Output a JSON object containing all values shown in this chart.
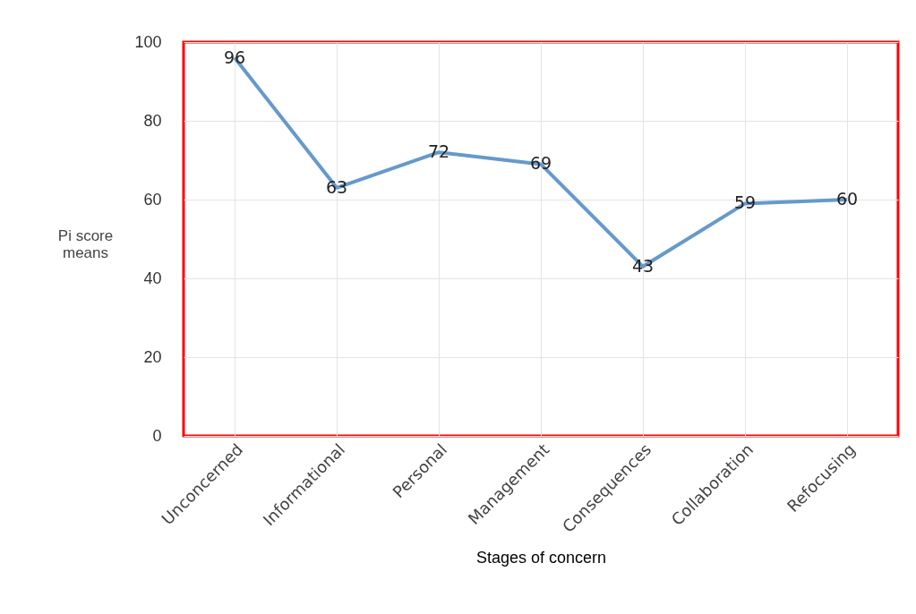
{
  "chart_data": {
    "type": "line",
    "xlabel": "Stages of concern",
    "ylabel": "Pi score means",
    "categories": [
      "Unconcerned",
      "Informational",
      "Personal",
      "Management",
      "Consequences",
      "Collaboration",
      "Refocusing"
    ],
    "series": [
      {
        "color": "#6699cc",
        "values": [
          96,
          63,
          72,
          69,
          43,
          59,
          60
        ]
      }
    ],
    "ylim": [
      0,
      100
    ],
    "yticks": [
      0,
      20,
      40,
      60,
      80,
      100
    ],
    "grid": true,
    "data_labels": true,
    "marker": "none",
    "line_style": "solid"
  }
}
